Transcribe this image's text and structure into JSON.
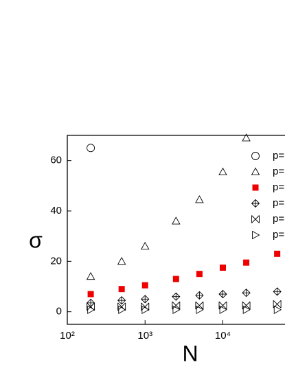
{
  "chart_data": {
    "type": "scatter",
    "xlabel": "N",
    "ylabel": "σ",
    "xscale": "log",
    "xlim": [
      100,
      63000
    ],
    "ylim": [
      -5,
      70
    ],
    "xticks": [
      {
        "value": 100,
        "label": "10²"
      },
      {
        "value": 1000,
        "label": "10³"
      },
      {
        "value": 10000,
        "label": "10⁴"
      }
    ],
    "yticks": [
      0,
      20,
      40,
      60
    ],
    "legend": "upper right",
    "series": [
      {
        "name": "p=",
        "marker": "circle",
        "color": "#000000",
        "x": [
          200
        ],
        "values": [
          65
        ]
      },
      {
        "name": "p=",
        "marker": "triangle",
        "color": "#000000",
        "x": [
          200,
          500,
          1000,
          2500,
          5000,
          10000,
          20000
        ],
        "values": [
          14,
          20,
          26,
          36,
          44.5,
          55.5,
          69
        ]
      },
      {
        "name": "p=",
        "marker": "square",
        "color": "#ee0000",
        "x": [
          200,
          500,
          1000,
          2500,
          5000,
          10000,
          20000,
          50000
        ],
        "values": [
          7,
          9,
          10.5,
          13,
          15,
          17.5,
          19.5,
          23
        ]
      },
      {
        "name": "p=",
        "marker": "diamond-plus",
        "color": "#000000",
        "x": [
          200,
          500,
          1000,
          2500,
          5000,
          10000,
          20000,
          50000
        ],
        "values": [
          3.5,
          4.5,
          5,
          6,
          6.5,
          7,
          7.5,
          8
        ]
      },
      {
        "name": "p=",
        "marker": "hourglass",
        "color": "#000000",
        "x": [
          200,
          500,
          1000,
          2500,
          5000,
          10000,
          20000,
          50000
        ],
        "values": [
          2,
          2,
          2,
          2.5,
          2.5,
          2.5,
          2.5,
          3
        ]
      },
      {
        "name": "p=",
        "marker": "right-triangle",
        "color": "#000000",
        "x": [
          200,
          500,
          1000,
          2500,
          5000,
          10000,
          20000,
          50000
        ],
        "values": [
          0.8,
          0.8,
          0.8,
          0.8,
          0.8,
          0.8,
          0.8,
          0.8
        ]
      }
    ]
  }
}
